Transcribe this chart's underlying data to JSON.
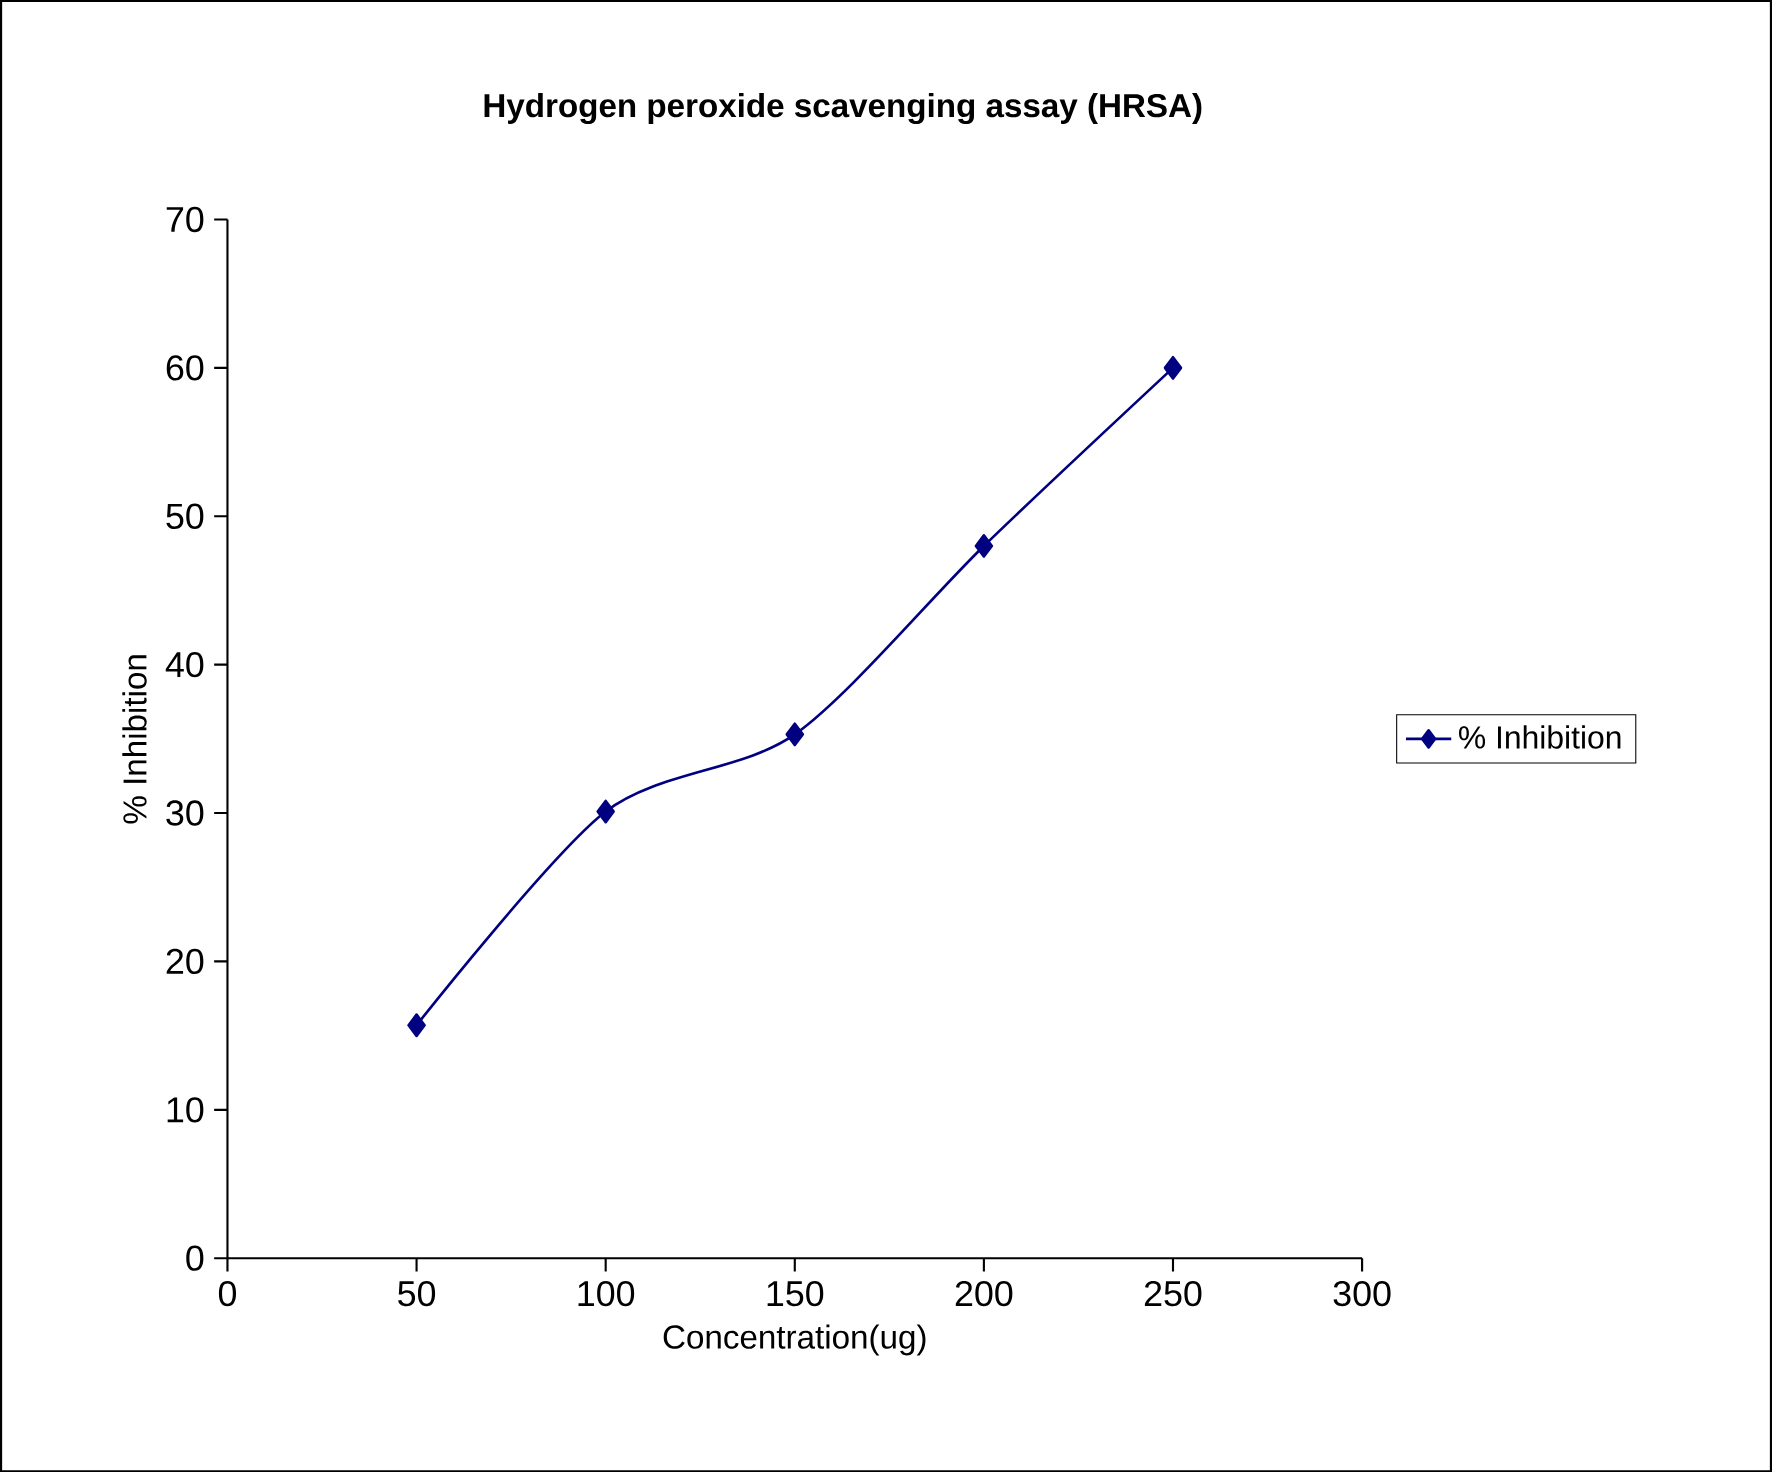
{
  "chart_data": {
    "type": "line",
    "title": "**Hydrogen peroxide scavenging assay (HRSA)**",
    "xlabel": "Concentration(ug)",
    "ylabel": "% Inhibition",
    "x": [
      50,
      100,
      150,
      200,
      250
    ],
    "series": [
      {
        "name": "% Inhibition",
        "color": "#000080",
        "values": [
          15.7,
          30.1,
          35.3,
          48.0,
          60.0
        ]
      }
    ],
    "xlim": [
      0,
      300
    ],
    "xticks": [
      0,
      50,
      100,
      150,
      200,
      250,
      300
    ],
    "ylim": [
      0,
      70
    ],
    "yticks": [
      0,
      10,
      20,
      30,
      40,
      50,
      60,
      70
    ],
    "legend": "right",
    "marker": "diamond",
    "line_style": "solid",
    "grid": false
  }
}
